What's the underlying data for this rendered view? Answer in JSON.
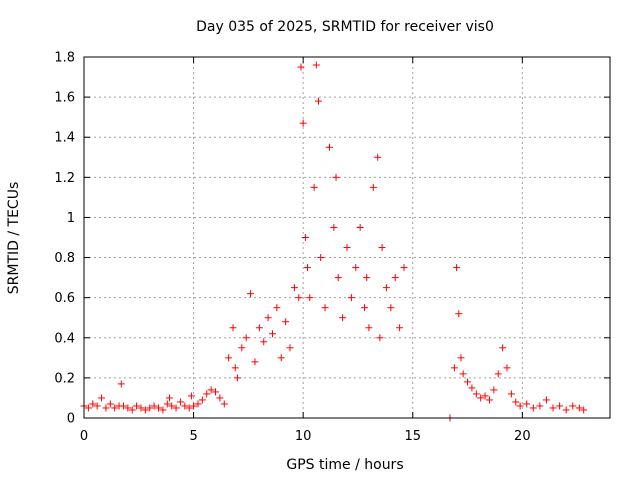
{
  "chart_data": {
    "type": "scatter",
    "title": "Day 035 of 2025, SRMTID for receiver vis0",
    "xlabel": "GPS time / hours",
    "ylabel": "SRMTID / TECUs",
    "xlim": [
      0,
      24
    ],
    "ylim": [
      0,
      1.8
    ],
    "xticks": [
      0,
      5,
      10,
      15,
      20
    ],
    "xtick_labels": [
      "0",
      "5",
      "10",
      "15",
      "20"
    ],
    "yticks": [
      0,
      0.2,
      0.4,
      0.6,
      0.8,
      1,
      1.2,
      1.4,
      1.6,
      1.8
    ],
    "ytick_labels": [
      "0",
      "0.2",
      "0.4",
      "0.6",
      "0.8",
      "1",
      "1.2",
      "1.4",
      "1.6",
      "1.8"
    ],
    "grid": true,
    "marker": "plus",
    "color": "#ff0000",
    "series": [
      {
        "name": "SRMTID",
        "x": [
          0.0,
          0.2,
          0.4,
          0.6,
          0.8,
          1.0,
          1.2,
          1.4,
          1.6,
          1.7,
          1.8,
          2.0,
          2.2,
          2.4,
          2.6,
          2.8,
          3.0,
          3.2,
          3.4,
          3.6,
          3.8,
          3.9,
          4.0,
          4.2,
          4.4,
          4.6,
          4.8,
          4.9,
          5.0,
          5.2,
          5.4,
          5.6,
          5.8,
          6.0,
          6.2,
          6.4,
          6.6,
          6.8,
          6.9,
          7.0,
          7.2,
          7.4,
          7.6,
          7.8,
          8.0,
          8.2,
          8.4,
          8.6,
          8.8,
          9.0,
          9.2,
          9.4,
          9.6,
          9.8,
          9.9,
          10.0,
          10.1,
          10.2,
          10.3,
          10.5,
          10.6,
          10.7,
          10.8,
          11.0,
          11.2,
          11.4,
          11.5,
          11.6,
          11.8,
          12.0,
          12.2,
          12.4,
          12.6,
          12.8,
          12.9,
          13.0,
          13.2,
          13.4,
          13.5,
          13.6,
          13.8,
          14.0,
          14.2,
          14.4,
          14.6,
          16.7,
          16.9,
          17.0,
          17.1,
          17.2,
          17.3,
          17.5,
          17.7,
          17.9,
          18.1,
          18.3,
          18.5,
          18.7,
          18.9,
          19.1,
          19.3,
          19.5,
          19.7,
          19.9,
          20.2,
          20.5,
          20.8,
          21.1,
          21.4,
          21.7,
          22.0,
          22.3,
          22.6,
          22.8
        ],
        "y": [
          0.06,
          0.05,
          0.07,
          0.06,
          0.1,
          0.05,
          0.07,
          0.05,
          0.06,
          0.17,
          0.06,
          0.05,
          0.04,
          0.06,
          0.05,
          0.04,
          0.05,
          0.06,
          0.05,
          0.04,
          0.07,
          0.1,
          0.06,
          0.05,
          0.08,
          0.06,
          0.05,
          0.11,
          0.06,
          0.07,
          0.09,
          0.12,
          0.14,
          0.13,
          0.1,
          0.07,
          0.3,
          0.45,
          0.25,
          0.2,
          0.35,
          0.4,
          0.62,
          0.28,
          0.45,
          0.38,
          0.5,
          0.42,
          0.55,
          0.3,
          0.48,
          0.35,
          0.65,
          0.6,
          1.75,
          1.47,
          0.9,
          0.75,
          0.6,
          1.15,
          1.76,
          1.58,
          0.8,
          0.55,
          1.35,
          0.95,
          1.2,
          0.7,
          0.5,
          0.85,
          0.6,
          0.75,
          0.95,
          0.55,
          0.7,
          0.45,
          1.15,
          1.3,
          0.4,
          0.85,
          0.65,
          0.55,
          0.7,
          0.45,
          0.75,
          0.0,
          0.25,
          0.75,
          0.52,
          0.3,
          0.22,
          0.18,
          0.15,
          0.12,
          0.1,
          0.11,
          0.09,
          0.14,
          0.22,
          0.35,
          0.25,
          0.12,
          0.08,
          0.06,
          0.07,
          0.05,
          0.06,
          0.09,
          0.05,
          0.06,
          0.04,
          0.06,
          0.05,
          0.04
        ]
      }
    ]
  }
}
